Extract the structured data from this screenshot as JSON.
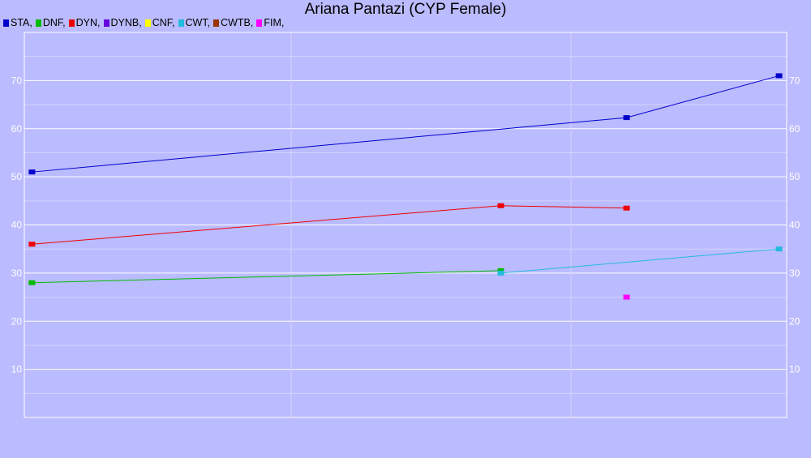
{
  "chart_data": {
    "type": "line",
    "title": "Ariana Pantazi (CYP Female)",
    "xlabel": "",
    "ylabel": "",
    "xlim": [
      0,
      100
    ],
    "ylim": [
      0,
      80
    ],
    "yticks": [
      "10",
      "20",
      "30",
      "40",
      "50",
      "60",
      "70"
    ],
    "ytick_values": [
      10,
      20,
      30,
      40,
      50,
      60,
      70
    ],
    "grid": true,
    "legend_position": "top-left",
    "series": [
      {
        "name": "STA,",
        "color": "#0000cc",
        "x": [
          1,
          79,
          99
        ],
        "y": [
          51,
          62.3,
          71
        ]
      },
      {
        "name": "DNF,",
        "color": "#00bb00",
        "x": [
          1,
          62.5
        ],
        "y": [
          28,
          30.5
        ]
      },
      {
        "name": "DYN,",
        "color": "#ee0000",
        "x": [
          1,
          62.5,
          79
        ],
        "y": [
          36,
          44,
          43.5
        ]
      },
      {
        "name": "DYNB,",
        "color": "#6600dd",
        "x": [],
        "y": []
      },
      {
        "name": "CNF,",
        "color": "#ffff00",
        "x": [],
        "y": []
      },
      {
        "name": "CWT,",
        "color": "#22bbdd",
        "x": [
          62.5,
          99
        ],
        "y": [
          30,
          35
        ]
      },
      {
        "name": "CWTB,",
        "color": "#993300",
        "x": [],
        "y": []
      },
      {
        "name": "FIM,",
        "color": "#ff00ff",
        "x": [
          79
        ],
        "y": [
          25
        ]
      }
    ]
  }
}
